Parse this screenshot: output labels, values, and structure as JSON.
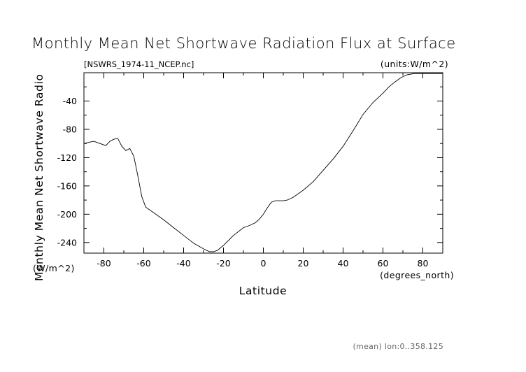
{
  "title": "Monthly Mean Net Shortwave Radiation Flux at Surface",
  "source_file": "[NSWRS_1974-11_NCEP.nc]",
  "units": "(units:W/m^2)",
  "footer": "(mean) lon:0..358.125",
  "chart_data": {
    "type": "line",
    "title": "Monthly Mean Net Shortwave Radiation Flux at Surface",
    "xlabel": "Latitude",
    "x_unit": "(degrees_north)",
    "ylabel": "Monthly Mean Net Shortwave Radio",
    "y_unit": "(W/m^2)",
    "xlim": [
      -90,
      90
    ],
    "ylim": [
      -255,
      0
    ],
    "xticks": [
      -80,
      -60,
      -40,
      -20,
      0,
      20,
      40,
      60,
      80
    ],
    "yticks": [
      -40,
      -80,
      -120,
      -160,
      -200,
      -240
    ],
    "x_tick_labels": [
      "-80",
      "-60",
      "-40",
      "-20",
      "0",
      "20",
      "40",
      "60",
      "80"
    ],
    "y_tick_labels": [
      "-40",
      "-80",
      "-120",
      "-160",
      "-200",
      "-240"
    ],
    "grid": false,
    "series": [
      {
        "x": [
          -90,
          -87,
          -85,
          -83,
          -81,
          -79,
          -77,
          -75,
          -73,
          -71,
          -69,
          -67,
          -65,
          -63,
          -61,
          -59,
          -55,
          -50,
          -45,
          -40,
          -35,
          -30,
          -27,
          -25,
          -23,
          -20,
          -15,
          -10,
          -7,
          -4,
          -2,
          0,
          2,
          4,
          6,
          8,
          10,
          12,
          15,
          20,
          25,
          30,
          35,
          40,
          45,
          50,
          55,
          60,
          63,
          66,
          69,
          72,
          76,
          80,
          85,
          90
        ],
        "y": [
          -100,
          -98,
          -97,
          -99,
          -101,
          -103,
          -97,
          -94,
          -93,
          -104,
          -110,
          -107,
          -118,
          -145,
          -175,
          -190,
          -198,
          -208,
          -219,
          -230,
          -241,
          -249,
          -253,
          -253,
          -251,
          -244,
          -230,
          -219,
          -216,
          -212,
          -207,
          -200,
          -191,
          -183,
          -181,
          -181,
          -181,
          -180,
          -176,
          -166,
          -154,
          -138,
          -122,
          -104,
          -82,
          -59,
          -42,
          -29,
          -20,
          -13,
          -7,
          -3,
          -1,
          -1,
          -1,
          -1
        ]
      }
    ]
  }
}
